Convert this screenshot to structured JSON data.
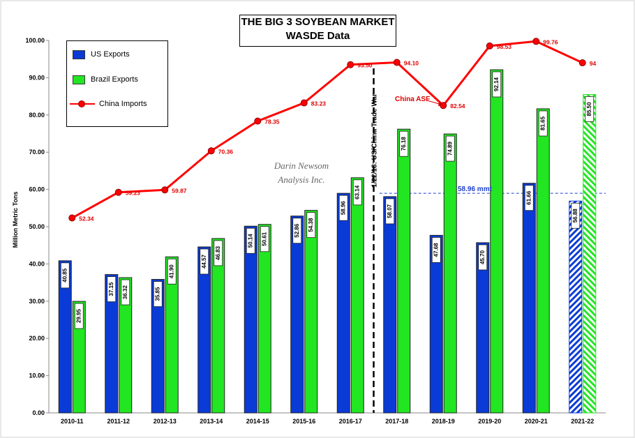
{
  "chart_data": {
    "type": "bar",
    "title": "THE BIG 3 SOYBEAN MARKET",
    "subtitle": "WASDE Data",
    "ylabel": "Million Metric Tons",
    "xlabel": "",
    "ylim": [
      0,
      100
    ],
    "ytick_labels": [
      "0.00",
      "10.00",
      "20.00",
      "30.00",
      "40.00",
      "50.00",
      "60.00",
      "70.00",
      "80.00",
      "90.00",
      "100.00"
    ],
    "categories": [
      "2010-11",
      "2011-12",
      "2012-13",
      "2013-14",
      "2014-15",
      "2015-16",
      "2016-17",
      "2017-18",
      "2018-19",
      "2019-20",
      "2020-21",
      "2021-22"
    ],
    "series": [
      {
        "name": "US Exports",
        "type": "bar",
        "color": "#0a3bd6",
        "values": [
          40.85,
          37.15,
          35.85,
          44.57,
          50.14,
          52.86,
          58.96,
          58.07,
          47.68,
          45.7,
          61.66,
          56.88
        ],
        "labels": [
          "40.85",
          "37.15",
          "35.85",
          "44.57",
          "50.14",
          "52.86",
          "58.96",
          "58.07",
          "47.68",
          "45.70",
          "61.66",
          "56.88"
        ],
        "projected_last": true
      },
      {
        "name": "Brazil Exports",
        "type": "bar",
        "color": "#22e622",
        "values": [
          29.95,
          36.32,
          41.9,
          46.83,
          50.61,
          54.38,
          63.14,
          76.18,
          74.89,
          92.14,
          81.65,
          85.5
        ],
        "labels": [
          "29.95",
          "36.32",
          "41.90",
          "46.83",
          "50.61",
          "54.38",
          "63.14",
          "76.18",
          "74.89",
          "92.14",
          "81.65",
          "85.50"
        ],
        "projected_last": true
      },
      {
        "name": "China Imports",
        "type": "line",
        "color": "#ff0000",
        "values": [
          52.34,
          59.23,
          59.87,
          70.36,
          78.35,
          83.23,
          93.5,
          94.1,
          82.54,
          98.53,
          99.76,
          94
        ],
        "labels": [
          "52.34",
          "59.23",
          "59.87",
          "70.36",
          "78.35",
          "83.23",
          "93.50",
          "94.10",
          "82.54",
          "98.53",
          "99.76",
          "94"
        ]
      }
    ],
    "annotations": {
      "trade_war": "1/22/18: US/China Trade War",
      "china_asf": "China ASF",
      "reference_value": 58.96,
      "reference_label": "58.96 mmt"
    },
    "legend": [
      "US Exports",
      "Brazil Exports",
      "China Imports"
    ],
    "legend_position": "top-left",
    "grid": false
  },
  "watermark": [
    "Darin Newsom",
    "Analysis Inc."
  ]
}
